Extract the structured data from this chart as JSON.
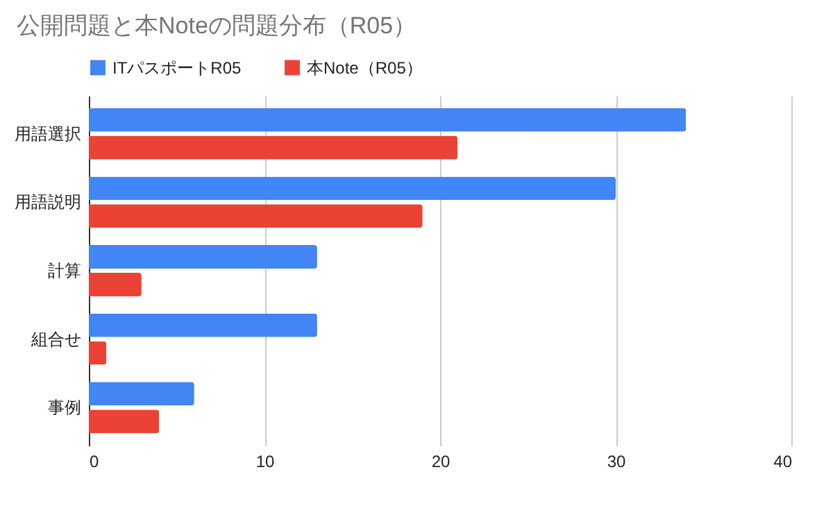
{
  "chart_data": {
    "type": "bar",
    "orientation": "horizontal",
    "title": "公開問題と本Noteの問題分布（R05）",
    "categories": [
      "用語選択",
      "用語説明",
      "計算",
      "組合せ",
      "事例"
    ],
    "series": [
      {
        "name": "ITパスポートR05",
        "color": "#4285f4",
        "values": [
          34,
          30,
          13,
          13,
          6
        ]
      },
      {
        "name": "本Note（R05）",
        "color": "#ea4335",
        "values": [
          21,
          19,
          3,
          1,
          4
        ]
      }
    ],
    "xlim": [
      0,
      40
    ],
    "xticks": [
      0,
      10,
      20,
      30,
      40
    ],
    "grid": "x",
    "legend": "top"
  }
}
